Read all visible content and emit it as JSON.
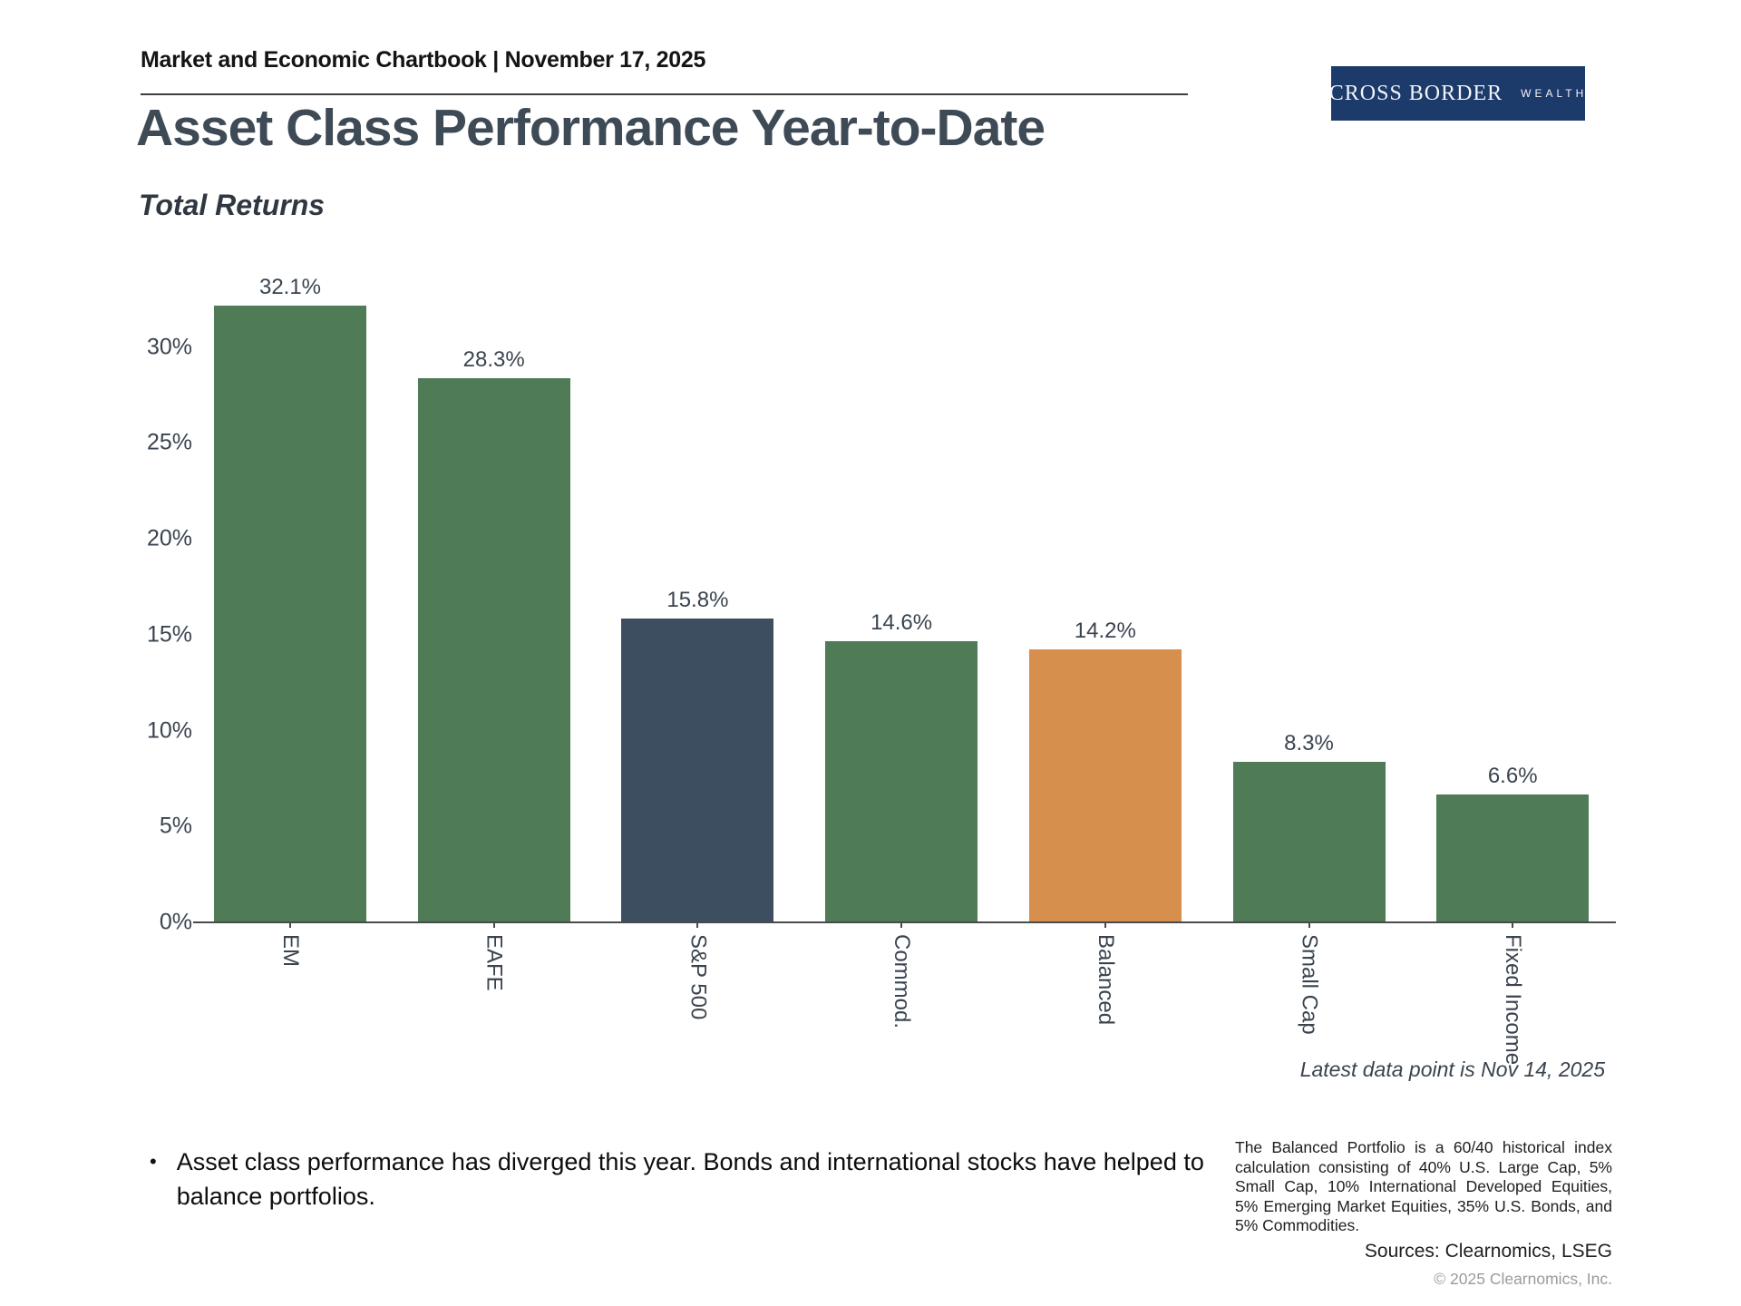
{
  "header": {
    "title": "Market and Economic Chartbook | November 17, 2025"
  },
  "logo": {
    "primary": "CROSS BORDER",
    "secondary": "WEALTH",
    "background_color": "#1c3a6a"
  },
  "page": {
    "title": "Asset Class Performance Year-to-Date",
    "subtitle": "Total Returns"
  },
  "chart_data": {
    "type": "bar",
    "title": "Asset Class Performance Year-to-Date",
    "subtitle": "Total Returns",
    "categories": [
      "EM",
      "EAFE",
      "S&P 500",
      "Commod.",
      "Balanced",
      "Small Cap",
      "Fixed Income"
    ],
    "values": [
      32.1,
      28.3,
      15.8,
      14.6,
      14.2,
      8.3,
      6.6
    ],
    "value_labels": [
      "32.1%",
      "28.3%",
      "15.8%",
      "14.6%",
      "14.2%",
      "8.3%",
      "6.6%"
    ],
    "bar_colors": [
      "#4f7b56",
      "#4f7b56",
      "#3c4e5f",
      "#4f7b56",
      "#d68f4d",
      "#4f7b56",
      "#4f7b56"
    ],
    "y_tick_labels": [
      "0%",
      "5%",
      "10%",
      "15%",
      "20%",
      "25%",
      "30%"
    ],
    "y_tick_values": [
      0,
      5,
      10,
      15,
      20,
      25,
      30
    ],
    "ylim": [
      0,
      33.5
    ],
    "xlabel": "",
    "ylabel": "",
    "grid": false,
    "legend": "none",
    "note": "Latest data point is Nov 14, 2025",
    "accent_colors": {
      "green": "#4f7b56",
      "slate": "#3c4e5f",
      "orange": "#d68f4d",
      "axis": "#4a4a4a"
    }
  },
  "commentary": {
    "bullet": "Asset class performance has diverged this year. Bonds and international stocks have helped to balance portfolios."
  },
  "footnote": {
    "text": "The Balanced Portfolio is a 60/40 historical index calculation consisting of 40% U.S. Large Cap, 5% Small Cap, 10% International Developed Equities, 5% Emerging Market Equities, 35% U.S. Bonds, and 5% Commodities.",
    "sources": "Sources: Clearnomics, LSEG",
    "copyright": "© 2025 Clearnomics, Inc."
  }
}
